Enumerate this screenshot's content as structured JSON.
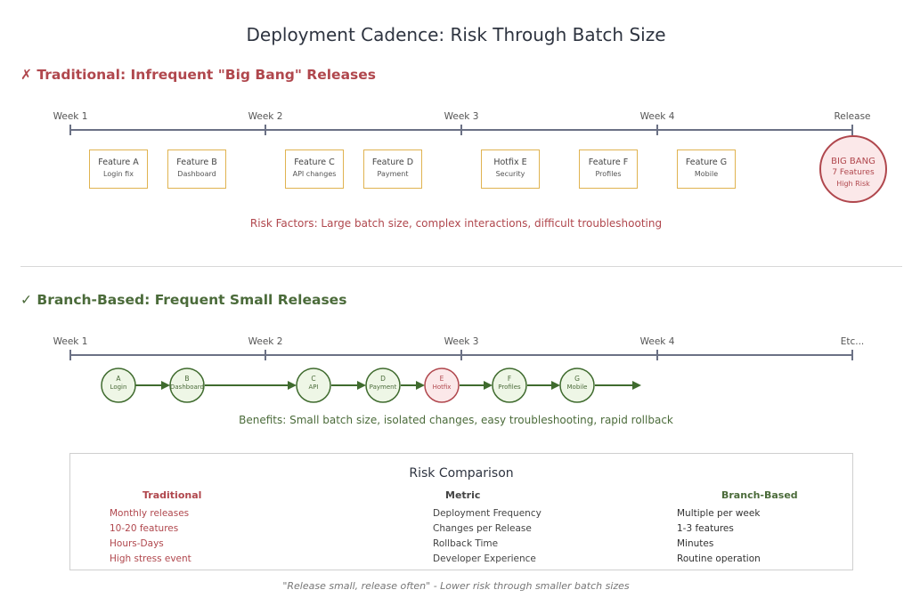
{
  "title": "Deployment Cadence: Risk Through Batch Size",
  "traditional": {
    "heading": "✗ Traditional: Infrequent \"Big Bang\" Releases",
    "axis_labels": [
      "Week 1",
      "Week 2",
      "Week 3",
      "Week 4",
      "Release"
    ],
    "features": [
      {
        "name": "Feature A",
        "desc": "Login fix"
      },
      {
        "name": "Feature B",
        "desc": "Dashboard"
      },
      {
        "name": "Feature C",
        "desc": "API changes"
      },
      {
        "name": "Feature D",
        "desc": "Payment"
      },
      {
        "name": "Hotfix E",
        "desc": "Security"
      },
      {
        "name": "Feature F",
        "desc": "Profiles"
      },
      {
        "name": "Feature G",
        "desc": "Mobile"
      }
    ],
    "big_bang": {
      "title": "BIG BANG",
      "count": "7 Features",
      "risk": "High Risk"
    },
    "risk_text": "Risk Factors: Large batch size, complex interactions, difficult troubleshooting"
  },
  "branch": {
    "heading": "✓ Branch-Based: Frequent Small Releases",
    "axis_labels": [
      "Week 1",
      "Week 2",
      "Week 3",
      "Week 4",
      "Etc..."
    ],
    "nodes": [
      {
        "letter": "A",
        "desc": "Login"
      },
      {
        "letter": "B",
        "desc": "Dashboard"
      },
      {
        "letter": "C",
        "desc": "API"
      },
      {
        "letter": "D",
        "desc": "Payment"
      },
      {
        "letter": "E",
        "desc": "Hotfix"
      },
      {
        "letter": "F",
        "desc": "Profiles"
      },
      {
        "letter": "G",
        "desc": "Mobile"
      }
    ],
    "benefits": "Benefits: Small batch size, isolated changes, easy troubleshooting, rapid rollback"
  },
  "comparison": {
    "title": "Risk Comparison",
    "headers": {
      "traditional": "Traditional",
      "metric": "Metric",
      "branch": "Branch-Based"
    },
    "rows": [
      {
        "traditional": "Monthly releases",
        "metric": "Deployment Frequency",
        "branch": "Multiple per week"
      },
      {
        "traditional": "10-20 features",
        "metric": "Changes per Release",
        "branch": "1-3 features"
      },
      {
        "traditional": "Hours-Days",
        "metric": "Rollback Time",
        "branch": "Minutes"
      },
      {
        "traditional": "High stress event",
        "metric": "Developer Experience",
        "branch": "Routine operation"
      }
    ]
  },
  "footer": "\"Release small, release often\" - Lower risk through smaller batch sizes",
  "colors": {
    "danger": "#b0474d",
    "success": "#4b6b3a",
    "feature_border": "#e0b350",
    "axis": "#6b7185"
  }
}
